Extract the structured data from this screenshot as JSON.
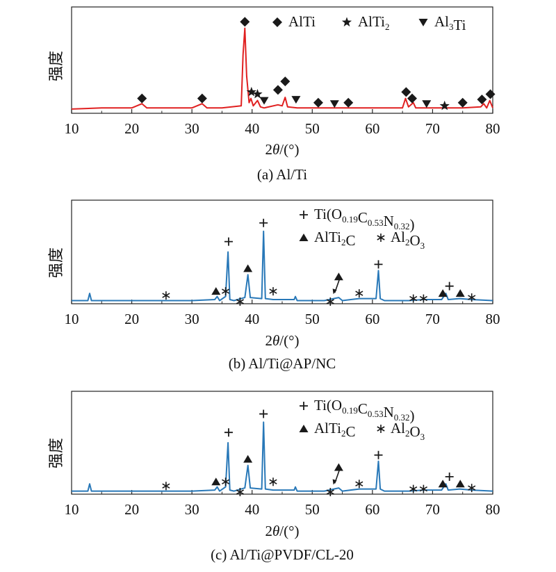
{
  "chart_data": [
    {
      "type": "line",
      "caption": "(a) Al/Ti",
      "ylabel": "强度",
      "xlabel_base": "2",
      "xlabel_var": "θ",
      "xlabel_unit": "/(°)",
      "xlim": [
        10,
        80
      ],
      "xticks": [
        10,
        20,
        30,
        40,
        50,
        60,
        70,
        80
      ],
      "line_color": "#e02020",
      "series": [
        {
          "values": [
            [
              10,
              0.04
            ],
            [
              15,
              0.05
            ],
            [
              20,
              0.05
            ],
            [
              21.7,
              0.09
            ],
            [
              22.5,
              0.05
            ],
            [
              25,
              0.05
            ],
            [
              30,
              0.05
            ],
            [
              31.7,
              0.09
            ],
            [
              32.5,
              0.05
            ],
            [
              35,
              0.05
            ],
            [
              38.2,
              0.07
            ],
            [
              38.5,
              0.55
            ],
            [
              38.8,
              0.8
            ],
            [
              39.1,
              0.35
            ],
            [
              39.5,
              0.1
            ],
            [
              39.8,
              0.14
            ],
            [
              40.2,
              0.07
            ],
            [
              40.9,
              0.12
            ],
            [
              41.4,
              0.06
            ],
            [
              42,
              0.05
            ],
            [
              44.3,
              0.08
            ],
            [
              45,
              0.07
            ],
            [
              45.5,
              0.15
            ],
            [
              45.9,
              0.06
            ],
            [
              47.5,
              0.05
            ],
            [
              50,
              0.05
            ],
            [
              55,
              0.05
            ],
            [
              60,
              0.05
            ],
            [
              65,
              0.05
            ],
            [
              65.5,
              0.14
            ],
            [
              66,
              0.06
            ],
            [
              66.8,
              0.1
            ],
            [
              67.2,
              0.05
            ],
            [
              70,
              0.05
            ],
            [
              75,
              0.05
            ],
            [
              78,
              0.06
            ],
            [
              78.5,
              0.09
            ],
            [
              79,
              0.05
            ],
            [
              79.5,
              0.12
            ],
            [
              80,
              0.05
            ]
          ]
        }
      ],
      "legend": [
        {
          "marker": "diamond",
          "label": "AlTi",
          "sub": "",
          "tail": ""
        },
        {
          "marker": "star",
          "label": "AlTi",
          "sub": "2",
          "tail": ""
        },
        {
          "marker": "triangle-down",
          "label": "Al",
          "sub": "3",
          "tail": "Ti"
        }
      ],
      "markers": [
        {
          "type": "diamond",
          "x": 21.7,
          "y": 0.14
        },
        {
          "type": "diamond",
          "x": 31.7,
          "y": 0.14
        },
        {
          "type": "diamond",
          "x": 38.8,
          "y": 0.86
        },
        {
          "type": "star",
          "x": 39.9,
          "y": 0.2
        },
        {
          "type": "star",
          "x": 40.9,
          "y": 0.18
        },
        {
          "type": "triangle-down",
          "x": 42,
          "y": 0.12
        },
        {
          "type": "diamond",
          "x": 44.3,
          "y": 0.22
        },
        {
          "type": "diamond",
          "x": 45.5,
          "y": 0.3
        },
        {
          "type": "triangle-down",
          "x": 47.3,
          "y": 0.13
        },
        {
          "type": "diamond",
          "x": 51,
          "y": 0.1
        },
        {
          "type": "triangle-down",
          "x": 53.7,
          "y": 0.09
        },
        {
          "type": "diamond",
          "x": 56,
          "y": 0.1
        },
        {
          "type": "diamond",
          "x": 65.6,
          "y": 0.2
        },
        {
          "type": "diamond",
          "x": 66.6,
          "y": 0.14
        },
        {
          "type": "triangle-down",
          "x": 69,
          "y": 0.09
        },
        {
          "type": "star",
          "x": 72,
          "y": 0.07
        },
        {
          "type": "diamond",
          "x": 75,
          "y": 0.1
        },
        {
          "type": "diamond",
          "x": 78.2,
          "y": 0.13
        },
        {
          "type": "diamond",
          "x": 79.6,
          "y": 0.18
        }
      ]
    },
    {
      "type": "line",
      "caption": "(b) Al/Ti@AP/NC",
      "ylabel": "强度",
      "xlabel_base": "2",
      "xlabel_var": "θ",
      "xlabel_unit": "/(°)",
      "xlim": [
        10,
        80
      ],
      "xticks": [
        10,
        20,
        30,
        40,
        50,
        60,
        70,
        80
      ],
      "line_color": "#2878b8",
      "series": [
        {
          "values": [
            [
              10,
              0.03
            ],
            [
              12.7,
              0.03
            ],
            [
              13,
              0.1
            ],
            [
              13.3,
              0.03
            ],
            [
              20,
              0.03
            ],
            [
              25.7,
              0.03
            ],
            [
              30,
              0.03
            ],
            [
              33.8,
              0.04
            ],
            [
              34.2,
              0.07
            ],
            [
              34.6,
              0.03
            ],
            [
              35.6,
              0.07
            ],
            [
              36,
              0.5
            ],
            [
              36.3,
              0.04
            ],
            [
              37,
              0.03
            ],
            [
              38.8,
              0.06
            ],
            [
              39.3,
              0.28
            ],
            [
              39.7,
              0.06
            ],
            [
              41.6,
              0.05
            ],
            [
              41.9,
              0.7
            ],
            [
              42.2,
              0.05
            ],
            [
              43.5,
              0.04
            ],
            [
              47,
              0.04
            ],
            [
              47.2,
              0.07
            ],
            [
              47.5,
              0.03
            ],
            [
              52,
              0.03
            ],
            [
              54.4,
              0.06
            ],
            [
              55,
              0.03
            ],
            [
              57.8,
              0.05
            ],
            [
              60.6,
              0.05
            ],
            [
              61,
              0.32
            ],
            [
              61.3,
              0.05
            ],
            [
              62,
              0.03
            ],
            [
              66,
              0.03
            ],
            [
              68.5,
              0.04
            ],
            [
              71.5,
              0.04
            ],
            [
              72.2,
              0.1
            ],
            [
              72.6,
              0.04
            ],
            [
              74.5,
              0.05
            ],
            [
              76.5,
              0.04
            ],
            [
              80,
              0.03
            ]
          ]
        }
      ],
      "legend": [
        {
          "marker": "plus",
          "label": "Ti(O",
          "sub": "0.19",
          "tail": "C",
          "sub2": "0.53",
          "tail2": "N",
          "sub3": "0.32",
          "tail3": ")"
        },
        {
          "marker": "triangle-up",
          "label": "AlTi",
          "sub": "2",
          "tail": "C"
        },
        {
          "marker": "asterisk",
          "label": "Al",
          "sub": "2",
          "tail": "O",
          "sub2": "3"
        }
      ],
      "markers": [
        {
          "type": "asterisk",
          "x": 25.7,
          "y": 0.08
        },
        {
          "type": "triangle-up",
          "x": 34,
          "y": 0.12
        },
        {
          "type": "asterisk",
          "x": 35.6,
          "y": 0.12
        },
        {
          "type": "plus",
          "x": 36.1,
          "y": 0.6
        },
        {
          "type": "asterisk",
          "x": 38,
          "y": 0.02
        },
        {
          "type": "triangle-up",
          "x": 39.3,
          "y": 0.34
        },
        {
          "type": "plus",
          "x": 41.9,
          "y": 0.78
        },
        {
          "type": "asterisk",
          "x": 43.5,
          "y": 0.12
        },
        {
          "type": "asterisk",
          "x": 53,
          "y": 0.02
        },
        {
          "type": "triangle-up",
          "x": 54.4,
          "y": 0.26
        },
        {
          "type": "asterisk",
          "x": 57.8,
          "y": 0.1
        },
        {
          "type": "plus",
          "x": 61,
          "y": 0.38
        },
        {
          "type": "asterisk",
          "x": 66.8,
          "y": 0.05
        },
        {
          "type": "asterisk",
          "x": 68.5,
          "y": 0.05
        },
        {
          "type": "triangle-up",
          "x": 71.7,
          "y": 0.1
        },
        {
          "type": "plus",
          "x": 72.8,
          "y": 0.17
        },
        {
          "type": "triangle-up",
          "x": 74.6,
          "y": 0.1
        },
        {
          "type": "asterisk",
          "x": 76.5,
          "y": 0.06
        }
      ]
    },
    {
      "type": "line",
      "caption": "(c) Al/Ti@PVDF/CL-20",
      "ylabel": "强度",
      "xlabel_base": "2",
      "xlabel_var": "θ",
      "xlabel_unit": "/(°)",
      "xlim": [
        10,
        80
      ],
      "xticks": [
        10,
        20,
        30,
        40,
        50,
        60,
        70,
        80
      ],
      "line_color": "#2878b8",
      "series": [
        {
          "values": [
            [
              10,
              0.03
            ],
            [
              12.7,
              0.03
            ],
            [
              13,
              0.1
            ],
            [
              13.3,
              0.03
            ],
            [
              20,
              0.03
            ],
            [
              25.7,
              0.03
            ],
            [
              30,
              0.03
            ],
            [
              33.8,
              0.04
            ],
            [
              34.2,
              0.07
            ],
            [
              34.6,
              0.03
            ],
            [
              35.6,
              0.07
            ],
            [
              36,
              0.5
            ],
            [
              36.3,
              0.04
            ],
            [
              37,
              0.03
            ],
            [
              38.8,
              0.06
            ],
            [
              39.3,
              0.28
            ],
            [
              39.7,
              0.06
            ],
            [
              41.6,
              0.05
            ],
            [
              41.9,
              0.7
            ],
            [
              42.2,
              0.05
            ],
            [
              43.5,
              0.04
            ],
            [
              47,
              0.04
            ],
            [
              47.2,
              0.07
            ],
            [
              47.5,
              0.03
            ],
            [
              52,
              0.03
            ],
            [
              54.4,
              0.06
            ],
            [
              55,
              0.03
            ],
            [
              57.8,
              0.05
            ],
            [
              60.6,
              0.05
            ],
            [
              61,
              0.32
            ],
            [
              61.3,
              0.05
            ],
            [
              62,
              0.03
            ],
            [
              66,
              0.03
            ],
            [
              68.5,
              0.04
            ],
            [
              71.5,
              0.04
            ],
            [
              72.2,
              0.1
            ],
            [
              72.6,
              0.04
            ],
            [
              74.5,
              0.05
            ],
            [
              76.5,
              0.04
            ],
            [
              80,
              0.03
            ]
          ]
        }
      ],
      "legend": [
        {
          "marker": "plus",
          "label": "Ti(O",
          "sub": "0.19",
          "tail": "C",
          "sub2": "0.53",
          "tail2": "N",
          "sub3": "0.32",
          "tail3": ")"
        },
        {
          "marker": "triangle-up",
          "label": "AlTi",
          "sub": "2",
          "tail": "C"
        },
        {
          "marker": "asterisk",
          "label": "Al",
          "sub": "2",
          "tail": "O",
          "sub2": "3"
        }
      ],
      "markers": [
        {
          "type": "asterisk",
          "x": 25.7,
          "y": 0.08
        },
        {
          "type": "triangle-up",
          "x": 34,
          "y": 0.12
        },
        {
          "type": "asterisk",
          "x": 35.6,
          "y": 0.12
        },
        {
          "type": "plus",
          "x": 36.1,
          "y": 0.6
        },
        {
          "type": "asterisk",
          "x": 38,
          "y": 0.02
        },
        {
          "type": "triangle-up",
          "x": 39.3,
          "y": 0.34
        },
        {
          "type": "plus",
          "x": 41.9,
          "y": 0.78
        },
        {
          "type": "asterisk",
          "x": 43.5,
          "y": 0.12
        },
        {
          "type": "asterisk",
          "x": 53,
          "y": 0.02
        },
        {
          "type": "triangle-up",
          "x": 54.4,
          "y": 0.26
        },
        {
          "type": "asterisk",
          "x": 57.8,
          "y": 0.1
        },
        {
          "type": "plus",
          "x": 61,
          "y": 0.38
        },
        {
          "type": "asterisk",
          "x": 66.8,
          "y": 0.05
        },
        {
          "type": "asterisk",
          "x": 68.5,
          "y": 0.05
        },
        {
          "type": "triangle-up",
          "x": 71.7,
          "y": 0.1
        },
        {
          "type": "plus",
          "x": 72.8,
          "y": 0.17
        },
        {
          "type": "triangle-up",
          "x": 74.6,
          "y": 0.1
        },
        {
          "type": "asterisk",
          "x": 76.5,
          "y": 0.06
        }
      ]
    }
  ]
}
